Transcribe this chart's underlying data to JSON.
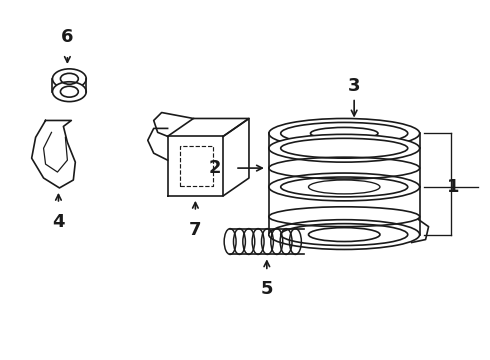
{
  "background_color": "#ffffff",
  "line_color": "#1a1a1a",
  "line_width": 1.2,
  "label_fontsize": 13,
  "label_fontweight": "bold",
  "figsize": [
    4.9,
    3.6
  ],
  "dpi": 100
}
